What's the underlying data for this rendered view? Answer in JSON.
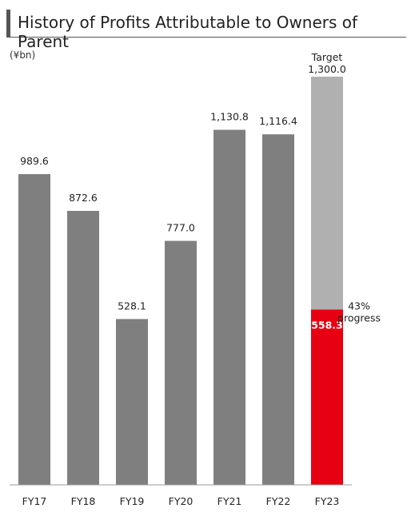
{
  "colors": {
    "bar": "#7f7f7f",
    "target": "#b0b0b0",
    "progress": "#e60012",
    "title_accent": "#555555",
    "axis": "#9a9a9a"
  },
  "chart_data": {
    "type": "bar",
    "title": "History of Profits Attributable to Owners of Parent",
    "unit": "(¥bn)",
    "categories": [
      "FY17",
      "FY18",
      "FY19",
      "FY20",
      "FY21",
      "FY22",
      "FY23"
    ],
    "values": [
      989.6,
      872.6,
      528.1,
      777.0,
      1130.8,
      1116.4,
      558.3
    ],
    "value_labels": [
      "989.6",
      "872.6",
      "528.1",
      "777.0",
      "1,130.8",
      "1,116.4",
      "558.3"
    ],
    "ylim": [
      0,
      1300
    ],
    "grid": false,
    "target": {
      "category": "FY23",
      "value": 1300.0,
      "label_line1": "Target",
      "label_line2": "1,300.0"
    },
    "progress_label_line1": "43%",
    "progress_label_line2": "progress"
  }
}
